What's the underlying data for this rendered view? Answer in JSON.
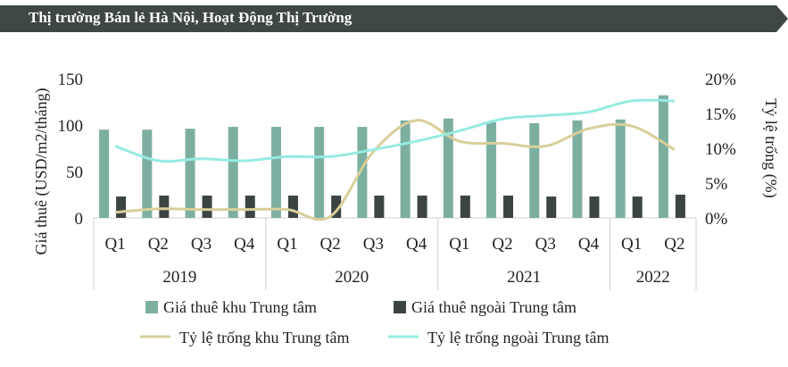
{
  "header": {
    "title": "Thị trường Bán lẻ Hà Nội, Hoạt Động Thị Trường"
  },
  "chart_data": {
    "type": "bar",
    "title": "Thị trường Bán lẻ Hà Nội, Hoạt Động Thị Trường",
    "categories": [
      "Q1",
      "Q2",
      "Q3",
      "Q4",
      "Q1",
      "Q2",
      "Q3",
      "Q4",
      "Q1",
      "Q2",
      "Q3",
      "Q4",
      "Q1",
      "Q2"
    ],
    "year_groups": [
      {
        "label": "2019",
        "count": 4
      },
      {
        "label": "2020",
        "count": 4
      },
      {
        "label": "2021",
        "count": 4
      },
      {
        "label": "2022",
        "count": 2
      }
    ],
    "ylabel": "Giá thuê (USD/m2/tháng)",
    "y2label": "Tỷ lệ trống (%)",
    "ylim": [
      0,
      150
    ],
    "y2lim": [
      0,
      20
    ],
    "yticks": [
      "0",
      "50",
      "100",
      "150"
    ],
    "y2ticks": [
      "0%",
      "5%",
      "10%",
      "15%",
      "20%"
    ],
    "series": [
      {
        "name": "Giá thuê khu Trung tâm",
        "kind": "bar",
        "axis": "left",
        "color": "#7dafa1",
        "values": [
          95,
          95,
          96,
          98,
          98,
          98,
          98,
          105,
          107,
          103,
          102,
          105,
          106,
          132
        ]
      },
      {
        "name": "Giá thuê ngoài Trung tâm",
        "kind": "bar",
        "axis": "left",
        "color": "#3c4443",
        "values": [
          23,
          24,
          24,
          24,
          24,
          24,
          24,
          24,
          24,
          24,
          23,
          23,
          23,
          25
        ]
      },
      {
        "name": "Tỷ lệ trống khu Trung tâm",
        "kind": "line",
        "axis": "right",
        "color": "#d8cf9a",
        "values": [
          0.8,
          1.3,
          1.2,
          1.2,
          1.2,
          0.2,
          9.5,
          14.0,
          11.0,
          10.7,
          10.3,
          12.8,
          13.2,
          9.8
        ]
      },
      {
        "name": "Tỷ lệ trống ngoài Trung tâm",
        "kind": "line",
        "axis": "right",
        "color": "#96ebe2",
        "values": [
          10.3,
          8.2,
          8.5,
          8.2,
          8.8,
          8.8,
          9.8,
          11.0,
          12.5,
          14.2,
          14.7,
          15.2,
          16.8,
          16.8
        ]
      }
    ]
  }
}
